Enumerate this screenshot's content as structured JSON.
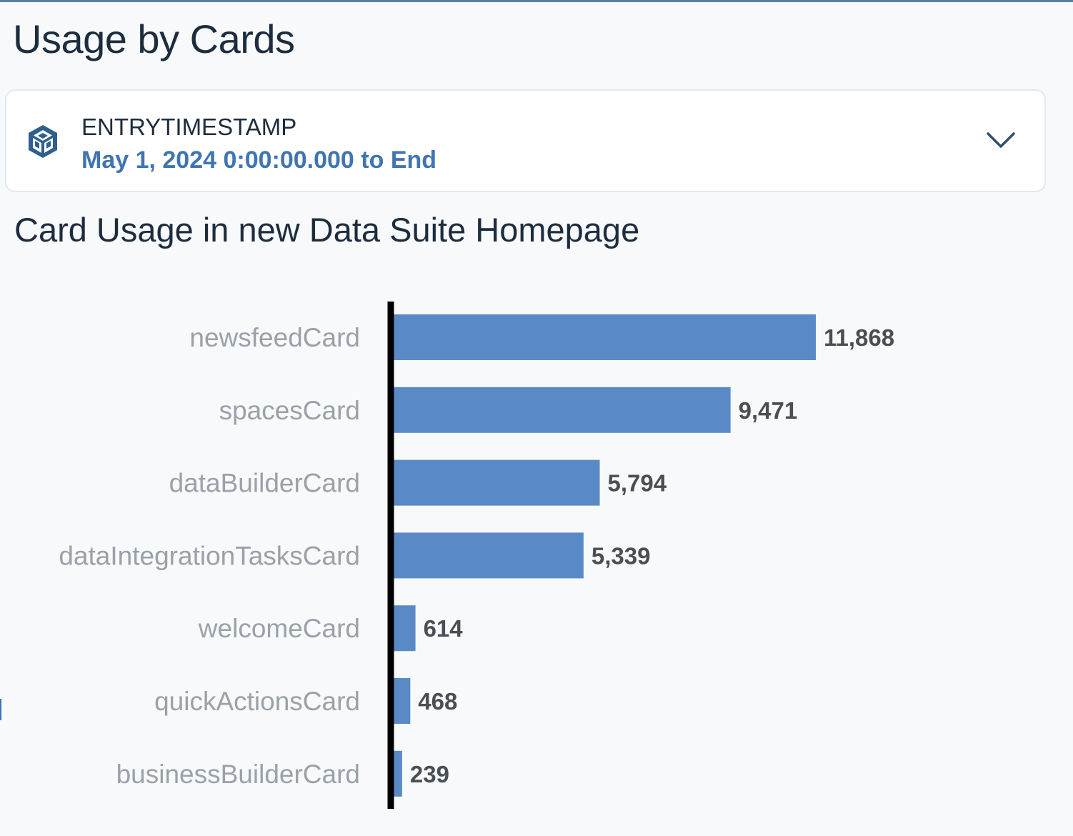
{
  "page": {
    "title": "Usage by Cards"
  },
  "filter": {
    "label": "ENTRYTIMESTAMP",
    "value": "May 1, 2024 0:00:00.000 to End",
    "icon": "cube-icon",
    "toggle_icon": "chevron-down-icon"
  },
  "colors": {
    "bar": "#5a8ac6",
    "accent": "#3f75b0",
    "axis": "#000000"
  },
  "chart_data": {
    "type": "bar",
    "orientation": "horizontal",
    "title": "Card Usage in new Data Suite Homepage",
    "categories": [
      "newsfeedCard",
      "spacesCard",
      "dataBuilderCard",
      "dataIntegrationTasksCard",
      "welcomeCard",
      "quickActionsCard",
      "businessBuilderCard"
    ],
    "values": [
      11868,
      9471,
      5794,
      5339,
      614,
      468,
      239
    ],
    "value_labels": [
      "11,868",
      "9,471",
      "5,794",
      "5,339",
      "614",
      "468",
      "239"
    ],
    "xlabel": "",
    "ylabel": "",
    "grid": false,
    "legend": "none"
  }
}
